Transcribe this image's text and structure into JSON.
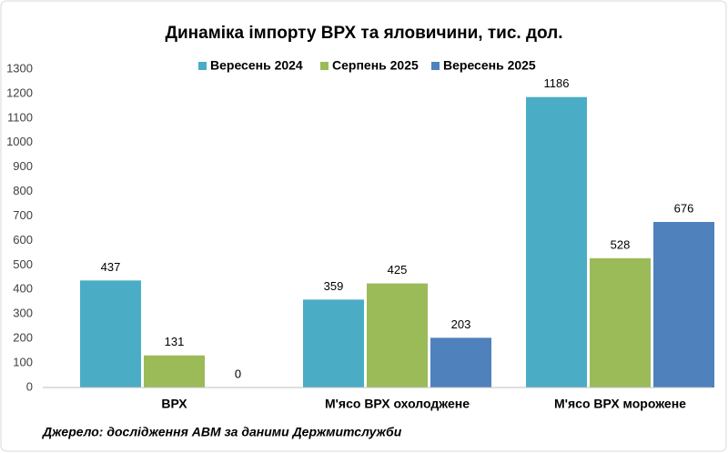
{
  "chart_data": {
    "type": "bar",
    "title": "Динаміка імпорту ВРХ та яловичини, тис. дол.",
    "categories": [
      "ВРХ",
      "М'ясо ВРХ охолоджене",
      "М'ясо ВРХ морожене"
    ],
    "series": [
      {
        "name": "Вересень 2024",
        "color": "#4bacc6",
        "label_color": "#31859c",
        "values": [
          437,
          359,
          1186
        ]
      },
      {
        "name": "Серпень 2025",
        "color": "#9bbb59",
        "label_color": "#4f6228",
        "values": [
          131,
          425,
          528
        ]
      },
      {
        "name": "Вересень 2025",
        "color": "#4f81bd",
        "label_color": "#17375e",
        "values": [
          0,
          203,
          676
        ]
      }
    ],
    "ylim": [
      0,
      1300
    ],
    "yticks": [
      0,
      100,
      200,
      300,
      400,
      500,
      600,
      700,
      800,
      900,
      1000,
      1100,
      1200,
      1300
    ],
    "grid": false,
    "legend": "top",
    "source": "Джерело: дослідження АВМ за даними Держмитслужби"
  }
}
